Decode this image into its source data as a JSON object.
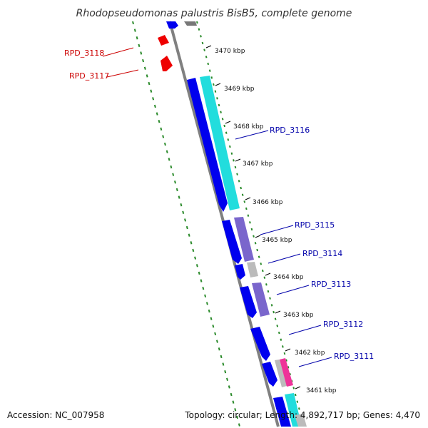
{
  "title": "Rhodopseudomonas palustris BisB5, complete genome",
  "ticks": [
    "3470 kbp",
    "3469 kbp",
    "3468 kbp",
    "3467 kbp",
    "3466 kbp",
    "3465 kbp",
    "3464 kbp",
    "3463 kbp",
    "3462 kbp",
    "3461 kbp"
  ],
  "genes_reverse": [
    {
      "label": "RPD_3118",
      "color": "#cc0000"
    },
    {
      "label": "RPD_3117",
      "color": "#cc0000"
    }
  ],
  "genes_forward": [
    {
      "label": "RPD_3116",
      "color": "#0000aa"
    },
    {
      "label": "RPD_3115",
      "color": "#0000aa"
    },
    {
      "label": "RPD_3114",
      "color": "#0000aa"
    },
    {
      "label": "RPD_3113",
      "color": "#0000aa"
    },
    {
      "label": "RPD_3112",
      "color": "#0000aa"
    },
    {
      "label": "RPD_3111",
      "color": "#0000aa"
    }
  ],
  "footer": {
    "accession": "Accession: NC_007958",
    "stats": "Topology: circular; Length: 4,892,717 bp; Genes: 4,470"
  },
  "colors": {
    "backbone": "#808080",
    "cds_forward": "#0000ee",
    "cds_reverse": "#ee0000",
    "cog_cyan": "#22dddd",
    "cog_purple": "#7a66cc",
    "cog_gray": "#bbbbbb",
    "cog_pink": "#ee3399",
    "gc_dots": "#2a8a2a"
  }
}
